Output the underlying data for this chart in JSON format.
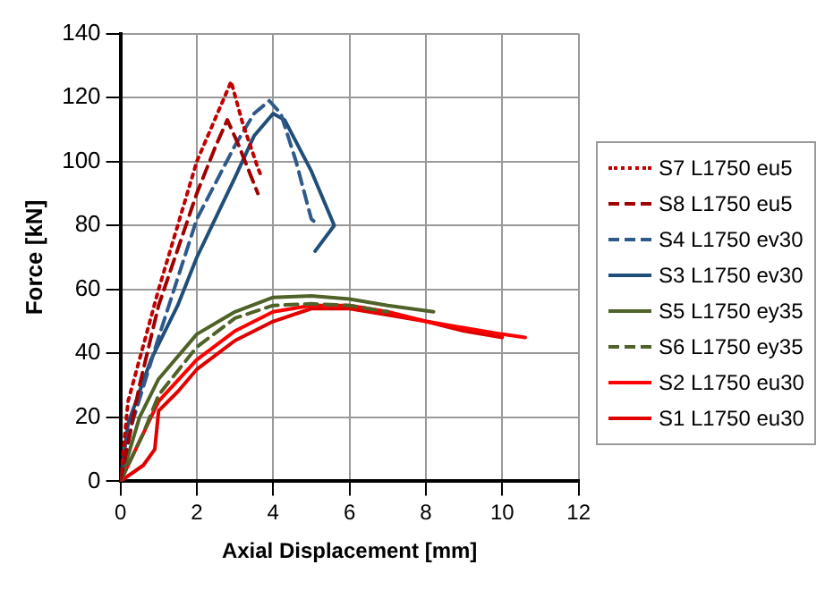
{
  "chart_data": {
    "type": "line",
    "xlabel": "Axial Displacement [mm]",
    "ylabel": "Force [kN]",
    "xlim": [
      0,
      12
    ],
    "xticks": [
      0,
      2,
      4,
      6,
      8,
      10,
      12
    ],
    "ylim": [
      0,
      140
    ],
    "yticks": [
      0,
      20,
      40,
      60,
      80,
      100,
      120,
      140
    ],
    "grid": true,
    "legend": "right",
    "marker": "none",
    "series": [
      {
        "name": "S7 L1750 eu5",
        "color": "#c00000",
        "line_style": "dotted",
        "x": [
          0,
          0.2,
          1,
          2,
          2.9,
          3.2,
          3.6,
          3.7
        ],
        "values": [
          0,
          25,
          60,
          100,
          125,
          112,
          98,
          95
        ]
      },
      {
        "name": "S8 L1750 eu5",
        "color": "#a00000",
        "line_style": "dashed",
        "x": [
          0,
          0.5,
          1,
          2,
          2.5,
          2.8,
          3.1,
          3.4,
          3.6
        ],
        "values": [
          0,
          30,
          55,
          90,
          105,
          113,
          105,
          96,
          90
        ]
      },
      {
        "name": "S4 L1750 ev30",
        "color": "#2e5a8a",
        "line_style": "dashed",
        "x": [
          0,
          0.3,
          1,
          2,
          3,
          3.5,
          3.9,
          4.2,
          4.6,
          5,
          5.2
        ],
        "values": [
          0,
          18,
          45,
          82,
          105,
          115,
          119,
          115,
          100,
          82,
          80
        ]
      },
      {
        "name": "S3 L1750 ev30",
        "color": "#1f4e79",
        "line_style": "solid",
        "x": [
          0,
          0.2,
          0.8,
          1.5,
          2,
          3,
          3.5,
          4,
          4.3,
          5,
          5.6,
          5.1
        ],
        "values": [
          0,
          18,
          38,
          55,
          70,
          95,
          108,
          115,
          113,
          97,
          80,
          72
        ]
      },
      {
        "name": "S5 L1750 ey35",
        "color": "#4f6228",
        "line_style": "solid",
        "x": [
          0,
          0.5,
          1,
          2,
          3,
          4,
          5,
          6,
          7,
          8.2
        ],
        "values": [
          0,
          20,
          32,
          46,
          53,
          57.5,
          58,
          57,
          55,
          53
        ]
      },
      {
        "name": "S6 L1750 ey35",
        "color": "#4f6228",
        "line_style": "dashed",
        "x": [
          0,
          0.6,
          1,
          2,
          3,
          4,
          5,
          6,
          7
        ],
        "values": [
          0,
          15,
          27,
          42,
          51,
          55,
          55.5,
          55,
          53
        ]
      },
      {
        "name": "S2 L1750 eu30",
        "color": "#ff0000",
        "line_style": "solid",
        "x": [
          0,
          1,
          2,
          3,
          4,
          5,
          6,
          7,
          8,
          9,
          10,
          10.6
        ],
        "values": [
          0,
          25,
          38,
          47,
          53,
          55,
          55,
          53,
          50,
          48,
          46,
          45
        ]
      },
      {
        "name": "S1 L1750 eu30",
        "color": "#e00000",
        "line_style": "solid",
        "x": [
          0,
          0.6,
          0.9,
          1,
          1.5,
          2,
          3,
          4,
          5,
          6,
          7,
          8,
          9,
          10
        ],
        "values": [
          0,
          5,
          10,
          22,
          28,
          35,
          44,
          50,
          54,
          54,
          52,
          50,
          47,
          45
        ]
      }
    ]
  }
}
